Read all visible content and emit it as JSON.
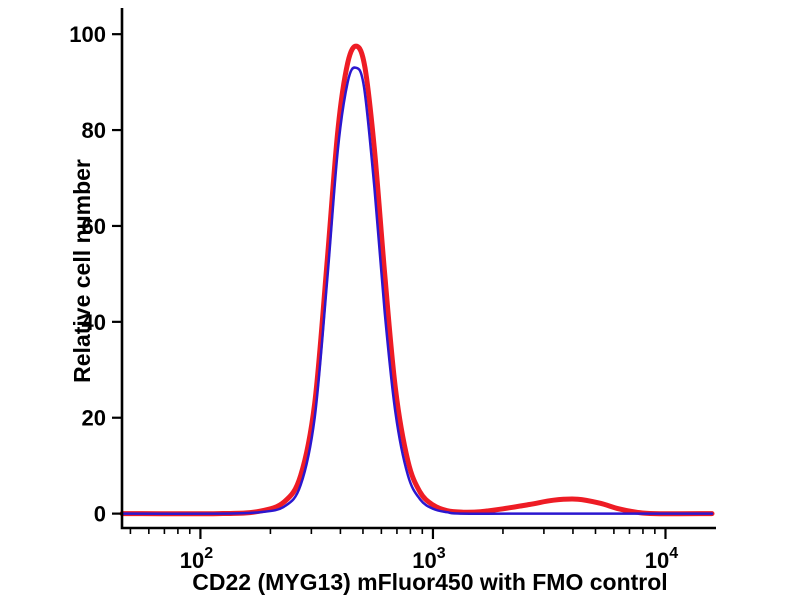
{
  "chart_data": {
    "type": "line",
    "title": "",
    "xlabel": "CD22 (MYG13) mFluor450 with FMO control",
    "ylabel": "Relative cell number",
    "x_scale": "log",
    "x_range": [
      46,
      15850
    ],
    "y_range": [
      -3,
      104
    ],
    "x_ticks": [
      100,
      1000,
      10000
    ],
    "y_ticks": [
      0,
      20,
      40,
      60,
      80,
      100
    ],
    "grid": false,
    "legend": "none",
    "axis_color": "#000000",
    "series": [
      {
        "name": "red",
        "color": "#ee1c25",
        "width": 5,
        "points": [
          [
            46,
            0
          ],
          [
            120,
            0
          ],
          [
            180,
            0.5
          ],
          [
            230,
            2.5
          ],
          [
            270,
            8
          ],
          [
            310,
            23
          ],
          [
            350,
            52
          ],
          [
            390,
            80
          ],
          [
            430,
            94
          ],
          [
            470,
            97.5
          ],
          [
            510,
            93
          ],
          [
            560,
            76
          ],
          [
            620,
            50
          ],
          [
            690,
            26
          ],
          [
            780,
            11
          ],
          [
            880,
            4.5
          ],
          [
            1000,
            1.8
          ],
          [
            1150,
            0.6
          ],
          [
            1350,
            0.3
          ],
          [
            1600,
            0.4
          ],
          [
            2000,
            1
          ],
          [
            2600,
            1.9
          ],
          [
            3300,
            2.8
          ],
          [
            4200,
            3
          ],
          [
            5200,
            2.2
          ],
          [
            6300,
            1
          ],
          [
            7500,
            0.3
          ],
          [
            9000,
            0
          ],
          [
            15850,
            0
          ]
        ]
      },
      {
        "name": "blue",
        "color": "#2b17cf",
        "width": 2.5,
        "points": [
          [
            46,
            0
          ],
          [
            120,
            0
          ],
          [
            180,
            0.3
          ],
          [
            230,
            1.5
          ],
          [
            270,
            6
          ],
          [
            310,
            20
          ],
          [
            350,
            48
          ],
          [
            390,
            76
          ],
          [
            430,
            90
          ],
          [
            465,
            93
          ],
          [
            505,
            89
          ],
          [
            560,
            68
          ],
          [
            620,
            42
          ],
          [
            690,
            21
          ],
          [
            780,
            8
          ],
          [
            880,
            3
          ],
          [
            1000,
            1
          ],
          [
            1150,
            0.3
          ],
          [
            1350,
            0
          ],
          [
            3000,
            0
          ],
          [
            8000,
            0
          ],
          [
            15850,
            0
          ]
        ]
      }
    ]
  }
}
